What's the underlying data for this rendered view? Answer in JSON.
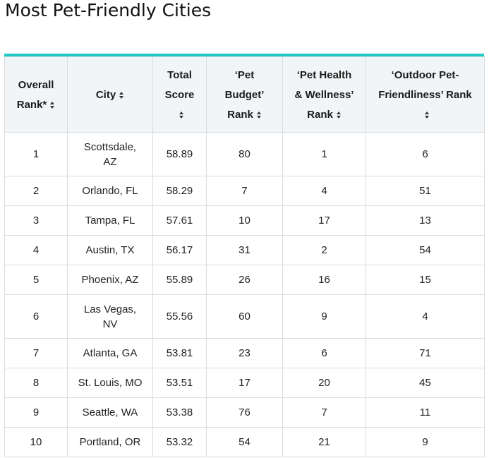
{
  "page": {
    "title": "Most Pet-Friendly Cities"
  },
  "colors": {
    "accent_rule": "#1fc9c9",
    "header_bg": "#f2f5f7",
    "border": "#dcdcdc"
  },
  "table": {
    "columns": [
      {
        "lines": [
          "Overall",
          "Rank*"
        ],
        "sort_icon": "sort-icon"
      },
      {
        "lines": [
          "City"
        ],
        "sort_icon": "sort-icon"
      },
      {
        "lines": [
          "Total",
          "Score",
          ""
        ],
        "sort_icon": "sort-icon"
      },
      {
        "lines": [
          "‘Pet",
          "Budget’",
          "Rank"
        ],
        "sort_icon": "sort-icon"
      },
      {
        "lines": [
          "‘Pet Health",
          "& Wellness’",
          "Rank"
        ],
        "sort_icon": "sort-icon"
      },
      {
        "lines": [
          "‘Outdoor Pet-",
          "Friendliness’ Rank",
          ""
        ],
        "sort_icon": "sort-icon"
      }
    ],
    "rows": [
      {
        "rank": "1",
        "city": [
          "Scottsdale,",
          "AZ"
        ],
        "total": "58.89",
        "budget": "80",
        "health": "1",
        "outdoor": "6"
      },
      {
        "rank": "2",
        "city": [
          "Orlando, FL"
        ],
        "total": "58.29",
        "budget": "7",
        "health": "4",
        "outdoor": "51"
      },
      {
        "rank": "3",
        "city": [
          "Tampa, FL"
        ],
        "total": "57.61",
        "budget": "10",
        "health": "17",
        "outdoor": "13"
      },
      {
        "rank": "4",
        "city": [
          "Austin, TX"
        ],
        "total": "56.17",
        "budget": "31",
        "health": "2",
        "outdoor": "54"
      },
      {
        "rank": "5",
        "city": [
          "Phoenix, AZ"
        ],
        "total": "55.89",
        "budget": "26",
        "health": "16",
        "outdoor": "15"
      },
      {
        "rank": "6",
        "city": [
          "Las Vegas,",
          "NV"
        ],
        "total": "55.56",
        "budget": "60",
        "health": "9",
        "outdoor": "4"
      },
      {
        "rank": "7",
        "city": [
          "Atlanta, GA"
        ],
        "total": "53.81",
        "budget": "23",
        "health": "6",
        "outdoor": "71"
      },
      {
        "rank": "8",
        "city": [
          "St. Louis, MO"
        ],
        "total": "53.51",
        "budget": "17",
        "health": "20",
        "outdoor": "45"
      },
      {
        "rank": "9",
        "city": [
          "Seattle, WA"
        ],
        "total": "53.38",
        "budget": "76",
        "health": "7",
        "outdoor": "11"
      },
      {
        "rank": "10",
        "city": [
          "Portland, OR"
        ],
        "total": "53.32",
        "budget": "54",
        "health": "21",
        "outdoor": "9"
      }
    ]
  }
}
